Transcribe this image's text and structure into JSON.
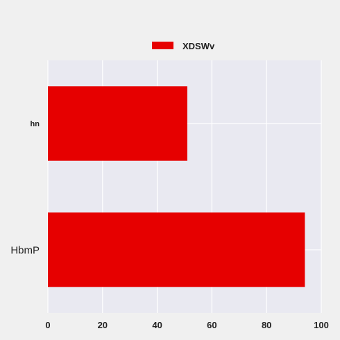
{
  "chart_data": {
    "type": "bar",
    "orientation": "horizontal",
    "categories": [
      "HbmP",
      "hn"
    ],
    "series": [
      {
        "name": "XDSWv",
        "values": [
          94,
          51
        ],
        "color": "#e60000"
      }
    ],
    "xlim": [
      0,
      100
    ],
    "xticks": [
      0,
      20,
      40,
      60,
      80,
      100
    ],
    "title": "",
    "xlabel": "",
    "ylabel": "",
    "grid": true,
    "legend_position": "top-center",
    "plot_background": "#e9e9f1",
    "page_background": "#f0f0f0"
  }
}
